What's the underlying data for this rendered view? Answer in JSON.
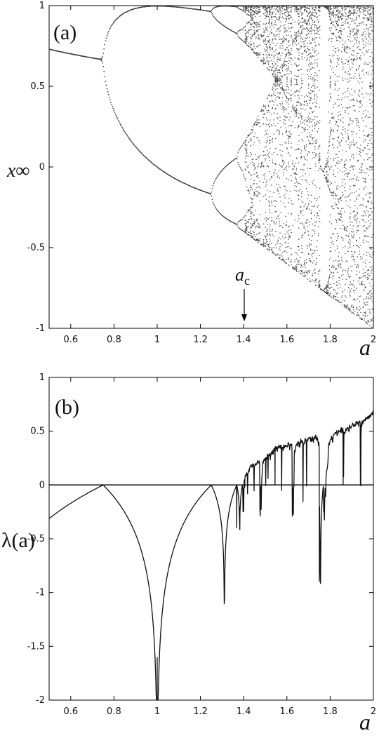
{
  "chart_data": [
    {
      "panel": "(a)",
      "type": "scatter",
      "description_type": "bifurcation diagram",
      "xlabel": "a",
      "ylabel": "x∞",
      "xlim": [
        0.5,
        2.0
      ],
      "ylim": [
        -1.0,
        1.0
      ],
      "xticks": [
        "0.6",
        "0.8",
        "1",
        "1.2",
        "1.4",
        "1.6",
        "1.8",
        "2"
      ],
      "xtick_values": [
        0.6,
        0.8,
        1.0,
        1.2,
        1.4,
        1.6,
        1.8,
        2.0
      ],
      "yticks": [
        "-1",
        "-0.5",
        "0",
        "0.5",
        "1"
      ],
      "ytick_values": [
        -1.0,
        -0.5,
        0.0,
        0.5,
        1.0
      ],
      "annotation": {
        "text": "a",
        "subscript": "c",
        "x": 1.4
      },
      "point_color": "#444444",
      "grid": false
    },
    {
      "panel": "(b)",
      "type": "line",
      "xlabel": "a",
      "ylabel": "λ(a)",
      "xlim": [
        0.5,
        2.0
      ],
      "ylim": [
        -2.0,
        1.0
      ],
      "xticks": [
        "0.6",
        "0.8",
        "1",
        "1.2",
        "1.4",
        "1.6",
        "1.8",
        "2"
      ],
      "xtick_values": [
        0.6,
        0.8,
        1.0,
        1.2,
        1.4,
        1.6,
        1.8,
        2.0
      ],
      "yticks": [
        "-2",
        "-1.5",
        "-1",
        "-0.5",
        "0",
        "0.5",
        "1"
      ],
      "ytick_values": [
        -2.0,
        -1.5,
        -1.0,
        -0.5,
        0.0,
        0.5,
        1.0
      ],
      "reference_line_y": 0,
      "line_color": "#111111",
      "grid": false,
      "dips": [
        {
          "a": 1.31,
          "lambda": -1.1
        },
        {
          "a": 1.368,
          "lambda": -0.4
        },
        {
          "a": 1.383,
          "lambda": -0.2
        },
        {
          "a": 1.4,
          "lambda": -0.25
        },
        {
          "a": 1.475,
          "lambda": -0.23
        },
        {
          "a": 1.545,
          "lambda": 0.0
        },
        {
          "a": 1.63,
          "lambda": -0.27
        },
        {
          "a": 1.75,
          "lambda": -0.9
        },
        {
          "a": 1.77,
          "lambda": -0.25
        },
        {
          "a": 1.86,
          "lambda": 0.0
        },
        {
          "a": 1.94,
          "lambda": 0.0
        }
      ]
    }
  ]
}
